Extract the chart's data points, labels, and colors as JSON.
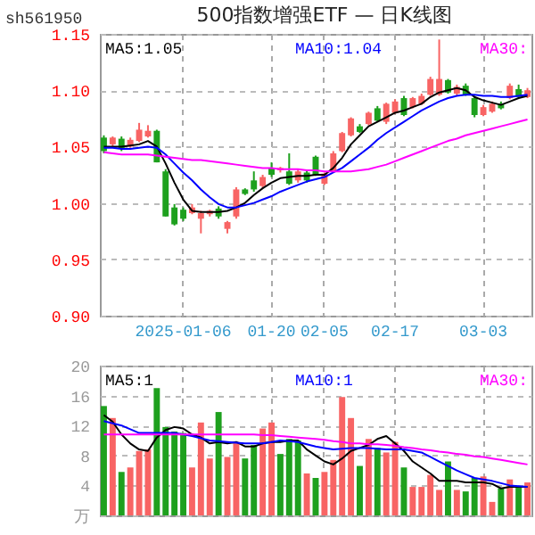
{
  "chart_data": [
    {
      "type": "candlestick",
      "title": "500指数增强ETF — 日K线图",
      "annotations": [
        "sh561950"
      ],
      "categories": [
        null,
        null,
        null,
        null,
        null,
        null,
        null,
        null,
        null,
        "2025-01-06",
        null,
        null,
        null,
        null,
        null,
        null,
        null,
        null,
        null,
        "01-20",
        null,
        null,
        null,
        null,
        null,
        "02-05",
        null,
        null,
        null,
        null,
        null,
        null,
        null,
        "02-17",
        null,
        null,
        null,
        null,
        null,
        null,
        null,
        null,
        null,
        "03-03",
        null,
        null,
        null,
        null,
        null
      ],
      "ohlc": [
        [
          1.058,
          1.06,
          1.044,
          1.046
        ],
        [
          1.052,
          1.059,
          1.05,
          1.058
        ],
        [
          1.057,
          1.059,
          1.046,
          1.048
        ],
        [
          1.05,
          1.058,
          1.049,
          1.056
        ],
        [
          1.055,
          1.071,
          1.054,
          1.065
        ],
        [
          1.059,
          1.069,
          1.058,
          1.064
        ],
        [
          1.064,
          1.065,
          1.036,
          1.036
        ],
        [
          1.028,
          1.03,
          0.988,
          0.988
        ],
        [
          0.996,
          0.999,
          0.98,
          0.981
        ],
        [
          0.994,
          0.996,
          0.984,
          0.986
        ],
        [
          0.991,
          0.999,
          0.99,
          0.996
        ],
        [
          0.986,
          0.993,
          0.973,
          0.991
        ],
        [
          0.99,
          0.994,
          0.988,
          0.993
        ],
        [
          0.995,
          0.997,
          0.986,
          0.988
        ],
        [
          0.977,
          0.984,
          0.973,
          0.983
        ],
        [
          0.988,
          1.014,
          0.986,
          1.012
        ],
        [
          1.012,
          1.013,
          1.007,
          1.008
        ],
        [
          1.02,
          1.028,
          1.01,
          1.012
        ],
        [
          1.015,
          1.025,
          1.013,
          1.023
        ],
        [
          1.031,
          1.036,
          1.023,
          1.025
        ],
        [
          1.029,
          1.032,
          1.027,
          1.031
        ],
        [
          1.028,
          1.044,
          1.016,
          1.017
        ],
        [
          1.02,
          1.03,
          1.018,
          1.028
        ],
        [
          1.027,
          1.029,
          1.018,
          1.02
        ],
        [
          1.041,
          1.042,
          1.024,
          1.025
        ],
        [
          1.017,
          1.027,
          1.016,
          1.026
        ],
        [
          1.028,
          1.046,
          1.027,
          1.044
        ],
        [
          1.046,
          1.063,
          1.045,
          1.062
        ],
        [
          1.06,
          1.076,
          1.059,
          1.075
        ],
        [
          1.068,
          1.07,
          1.062,
          1.063
        ],
        [
          1.07,
          1.081,
          1.069,
          1.08
        ],
        [
          1.084,
          1.086,
          1.072,
          1.073
        ],
        [
          1.072,
          1.089,
          1.07,
          1.088
        ],
        [
          1.08,
          1.092,
          1.079,
          1.09
        ],
        [
          1.093,
          1.095,
          1.077,
          1.078
        ],
        [
          1.085,
          1.094,
          1.084,
          1.093
        ],
        [
          1.088,
          1.097,
          1.087,
          1.095
        ],
        [
          1.096,
          1.112,
          1.095,
          1.11
        ],
        [
          1.096,
          1.145,
          1.095,
          1.11
        ],
        [
          1.109,
          1.11,
          1.097,
          1.098
        ],
        [
          1.097,
          1.105,
          1.095,
          1.103
        ],
        [
          1.104,
          1.106,
          1.095,
          1.096
        ],
        [
          1.093,
          1.095,
          1.076,
          1.078
        ],
        [
          1.078,
          1.087,
          1.077,
          1.085
        ],
        [
          1.081,
          1.09,
          1.08,
          1.088
        ],
        [
          1.088,
          1.09,
          1.083,
          1.084
        ],
        [
          1.093,
          1.106,
          1.092,
          1.104
        ],
        [
          1.101,
          1.105,
          1.093,
          1.094
        ],
        [
          1.094,
          1.102,
          1.093,
          1.1
        ]
      ],
      "colors": [
        "#1ea01e",
        "#f86464",
        "#1ea01e",
        "#f86464",
        "#f86464",
        "#f86464",
        "#1ea01e",
        "#1ea01e",
        "#1ea01e",
        "#1ea01e",
        "#f86464",
        "#f86464",
        "#f86464",
        "#1ea01e",
        "#f86464",
        "#f86464",
        "#1ea01e",
        "#1ea01e",
        "#f86464",
        "#1ea01e",
        "#f86464",
        "#1ea01e",
        "#f86464",
        "#1ea01e",
        "#1ea01e",
        "#f86464",
        "#f86464",
        "#f86464",
        "#f86464",
        "#1ea01e",
        "#f86464",
        "#1ea01e",
        "#f86464",
        "#f86464",
        "#1ea01e",
        "#f86464",
        "#f86464",
        "#f86464",
        "#f86464",
        "#1ea01e",
        "#f86464",
        "#1ea01e",
        "#1ea01e",
        "#f86464",
        "#f86464",
        "#1ea01e",
        "#f86464",
        "#1ea01e",
        "#f86464"
      ],
      "series": [
        {
          "type": "line",
          "name": "MA5:1.05",
          "color": "#000000",
          "values": [
            1.05,
            1.05,
            1.05,
            1.051,
            1.052,
            1.055,
            1.05,
            1.035,
            1.018,
            1.003,
            0.993,
            0.992,
            0.992,
            0.992,
            0.993,
            0.996,
            1.0,
            1.007,
            1.013,
            1.018,
            1.022,
            1.023,
            1.024,
            1.024,
            1.025,
            1.025,
            1.031,
            1.04,
            1.052,
            1.06,
            1.068,
            1.072,
            1.076,
            1.08,
            1.082,
            1.085,
            1.088,
            1.094,
            1.098,
            1.1,
            1.102,
            1.1,
            1.094,
            1.091,
            1.089,
            1.087,
            1.09,
            1.093,
            1.095
          ]
        },
        {
          "type": "line",
          "name": "MA10:1.04",
          "color": "#0000ff",
          "values": [
            1.049,
            1.049,
            1.048,
            1.048,
            1.049,
            1.05,
            1.049,
            1.043,
            1.035,
            1.027,
            1.02,
            1.012,
            1.005,
            0.999,
            0.996,
            0.996,
            0.998,
            1.0,
            1.003,
            1.006,
            1.01,
            1.013,
            1.016,
            1.019,
            1.021,
            1.023,
            1.027,
            1.031,
            1.037,
            1.043,
            1.049,
            1.056,
            1.062,
            1.067,
            1.072,
            1.077,
            1.082,
            1.086,
            1.09,
            1.093,
            1.095,
            1.096,
            1.096,
            1.095,
            1.095,
            1.094,
            1.094,
            1.095,
            1.096
          ]
        },
        {
          "type": "line",
          "name": "MA30:",
          "color": "#ff00ff",
          "values": [
            1.045,
            1.044,
            1.043,
            1.043,
            1.043,
            1.043,
            1.042,
            1.041,
            1.04,
            1.039,
            1.038,
            1.038,
            1.037,
            1.036,
            1.035,
            1.034,
            1.033,
            1.032,
            1.031,
            1.031,
            1.03,
            1.03,
            1.03,
            1.029,
            1.029,
            1.028,
            1.028,
            1.028,
            1.028,
            1.029,
            1.03,
            1.032,
            1.034,
            1.037,
            1.04,
            1.043,
            1.046,
            1.049,
            1.052,
            1.055,
            1.057,
            1.06,
            1.062,
            1.064,
            1.066,
            1.068,
            1.07,
            1.072,
            1.074
          ]
        }
      ],
      "ylim": [
        0.9,
        1.15
      ],
      "yticks": [
        1.15,
        {
          "value": 1.1,
          "label": "1.10"
        },
        1.05,
        {
          "value": 1.0,
          "label": "1.00"
        },
        0.95,
        {
          "value": 0.9,
          "label": "0.90"
        }
      ],
      "grid": true,
      "legend": "top"
    },
    {
      "type": "bar",
      "tick_labels": "y",
      "categories": [
        null,
        null,
        null,
        null,
        null,
        null,
        null,
        null,
        null,
        null,
        null,
        null,
        null,
        null,
        null,
        null,
        null,
        null,
        null,
        null,
        null,
        null,
        null,
        null,
        null,
        null,
        null,
        null,
        null,
        null,
        null,
        null,
        null,
        null,
        null,
        null,
        null,
        null,
        null,
        null,
        null,
        null,
        null,
        null,
        null,
        null,
        null,
        null,
        null
      ],
      "values": [
        14.6,
        13.0,
        5.8,
        6.4,
        8.6,
        8.8,
        17.0,
        11.8,
        11.2,
        11.0,
        6.4,
        12.4,
        7.6,
        13.8,
        7.8,
        9.8,
        7.6,
        9.4,
        11.6,
        12.4,
        8.2,
        10.2,
        10.0,
        5.6,
        5.0,
        5.8,
        7.4,
        15.8,
        13.0,
        6.6,
        10.2,
        9.0,
        8.4,
        9.8,
        6.4,
        3.8,
        3.8,
        5.4,
        3.4,
        7.2,
        3.4,
        3.2,
        5.0,
        5.2,
        1.8,
        3.6,
        4.8,
        3.8,
        4.4
      ],
      "colors": [
        "#1ea01e",
        "#f86464",
        "#1ea01e",
        "#f86464",
        "#f86464",
        "#f86464",
        "#1ea01e",
        "#1ea01e",
        "#1ea01e",
        "#1ea01e",
        "#f86464",
        "#f86464",
        "#f86464",
        "#1ea01e",
        "#f86464",
        "#f86464",
        "#1ea01e",
        "#1ea01e",
        "#f86464",
        "#f86464",
        "#1ea01e",
        "#1ea01e",
        "#1ea01e",
        "#f86464",
        "#1ea01e",
        "#f86464",
        "#f86464",
        "#f86464",
        "#f86464",
        "#1ea01e",
        "#f86464",
        "#1ea01e",
        "#f86464",
        "#f86464",
        "#1ea01e",
        "#f86464",
        "#f86464",
        "#f86464",
        "#f86464",
        "#1ea01e",
        "#f86464",
        "#1ea01e",
        "#1ea01e",
        "#f86464",
        "#f86464",
        "#1ea01e",
        "#f86464",
        "#1ea01e",
        "#f86464"
      ],
      "series": [
        {
          "type": "line",
          "name": "MA5:1",
          "color": "#000000",
          "values": [
            13.4,
            12.5,
            10.8,
            9.6,
            8.8,
            8.6,
            10.4,
            11.4,
            11.8,
            11.6,
            10.8,
            10.4,
            9.6,
            9.8,
            9.6,
            9.8,
            9.2,
            9.2,
            9.6,
            9.8,
            9.8,
            10.0,
            10.0,
            8.8,
            8.0,
            7.2,
            6.8,
            7.6,
            8.6,
            9.0,
            9.4,
            10.2,
            10.6,
            9.6,
            8.6,
            7.2,
            6.4,
            5.6,
            4.6,
            4.6,
            4.6,
            4.4,
            4.4,
            4.4,
            4.2,
            3.6,
            3.8,
            3.8,
            3.8
          ]
        },
        {
          "type": "line",
          "name": "MA10:1",
          "color": "#0000ff",
          "values": [
            12.6,
            12.3,
            12.0,
            11.5,
            11.0,
            11.0,
            11.0,
            11.0,
            11.0,
            10.8,
            10.6,
            10.3,
            10.0,
            9.9,
            9.8,
            9.7,
            9.6,
            9.6,
            9.6,
            9.8,
            10.0,
            9.9,
            9.8,
            9.5,
            9.2,
            9.0,
            8.8,
            8.9,
            9.0,
            9.0,
            9.0,
            8.9,
            8.8,
            8.8,
            8.8,
            8.6,
            8.4,
            7.8,
            7.2,
            6.6,
            6.0,
            5.5,
            5.0,
            4.8,
            4.6,
            4.3,
            4.0,
            3.9,
            3.8
          ]
        },
        {
          "type": "line",
          "name": "MA30:",
          "color": "#ff00ff",
          "values": [
            10.8,
            10.8,
            10.8,
            10.8,
            10.8,
            10.8,
            10.8,
            10.8,
            10.8,
            10.8,
            10.8,
            10.8,
            10.8,
            10.8,
            10.8,
            10.8,
            10.8,
            10.8,
            10.7,
            10.7,
            10.6,
            10.5,
            10.4,
            10.3,
            10.2,
            10.1,
            9.9,
            9.8,
            9.6,
            9.6,
            9.5,
            9.5,
            9.4,
            9.3,
            9.1,
            9.0,
            8.8,
            8.7,
            8.5,
            8.4,
            8.2,
            8.1,
            7.9,
            7.8,
            7.6,
            7.4,
            7.2,
            7.0,
            6.8
          ]
        }
      ],
      "ylim": [
        0,
        20
      ],
      "yticks": [
        {
          "value": 0,
          "label": "万"
        },
        4,
        8,
        12,
        16,
        20
      ],
      "grid": true,
      "legend": "top"
    }
  ]
}
